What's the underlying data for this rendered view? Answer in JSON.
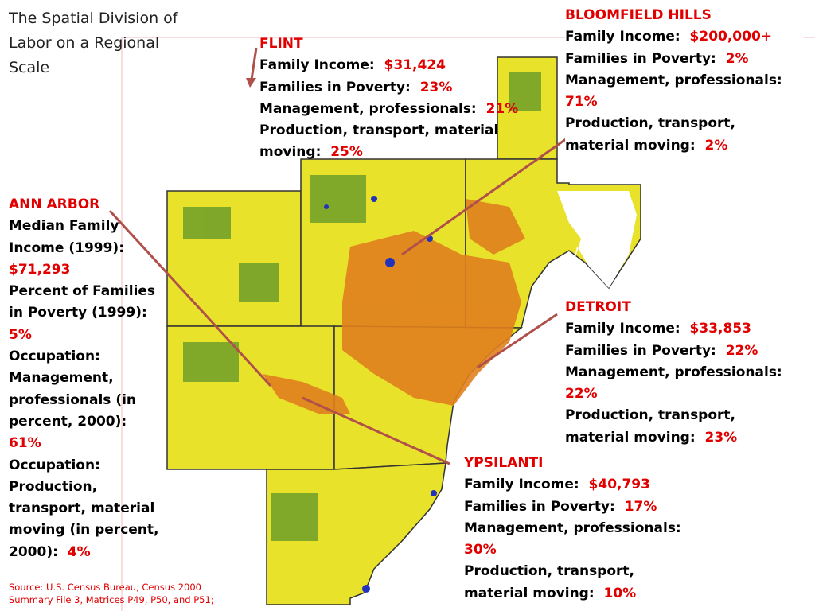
{
  "title": "The Spatial Division of Labor on a Regional Scale",
  "callouts": [
    {
      "name": "FLINT",
      "items": [
        {
          "label": "Family Income:",
          "value": "$31,424"
        },
        {
          "label": "Families in Poverty:",
          "value": "23%"
        },
        {
          "label": "Management, professionals:",
          "value": "21%"
        },
        {
          "label": "Production, transport, material moving:",
          "value": "25%"
        }
      ]
    },
    {
      "name": "BLOOMFIELD HILLS",
      "items": [
        {
          "label": "Family Income:",
          "value": "$200,000+"
        },
        {
          "label": "Families in Poverty:",
          "value": "2%"
        },
        {
          "label": "Management, professionals:",
          "value": "71%"
        },
        {
          "label": "Production, transport, material moving:",
          "value": "2%"
        }
      ]
    },
    {
      "name": "ANN ARBOR",
      "items": [
        {
          "label": "Median Family Income (1999):",
          "value": "$71,293"
        },
        {
          "label": "Percent of Families in Poverty (1999):",
          "value": "5%"
        },
        {
          "label": "Occupation: Management, professionals (in percent, 2000):",
          "value": "61%"
        },
        {
          "label": "Occupation: Production, transport, material moving (in percent, 2000):",
          "value": "4%"
        }
      ]
    },
    {
      "name": "DETROIT",
      "items": [
        {
          "label": "Family Income:",
          "value": "$33,853"
        },
        {
          "label": "Families in Poverty:",
          "value": "22%"
        },
        {
          "label": "Management, professionals:",
          "value": "22%"
        },
        {
          "label": "Production, transport, material moving:",
          "value": "23%"
        }
      ]
    },
    {
      "name": "YPSILANTI",
      "items": [
        {
          "label": "Family Income:",
          "value": "$40,793"
        },
        {
          "label": "Families in Poverty:",
          "value": "17%"
        },
        {
          "label": "Management, professionals:",
          "value": "30%"
        },
        {
          "label": "Production, transport, material moving:",
          "value": "10%"
        }
      ]
    }
  ],
  "source": "Source: U.S. Census Bureau, Census 2000 Summary File 3, Matrices P49, P50, and P51;"
}
